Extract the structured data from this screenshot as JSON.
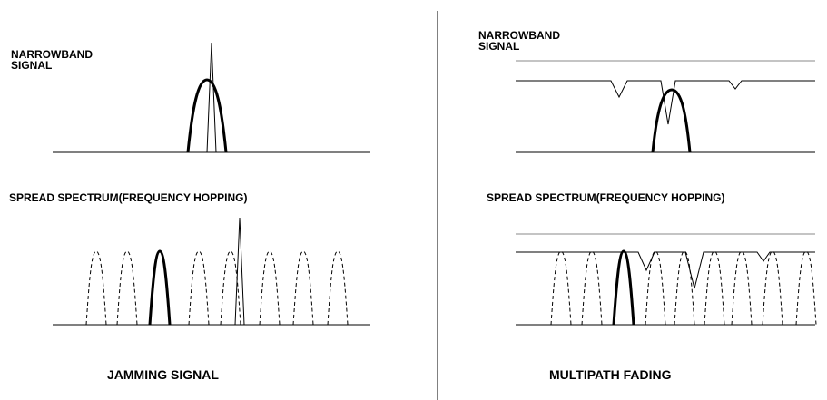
{
  "left_panel": {
    "narrowband_label": [
      "NARROWBAND",
      "SIGNAL"
    ],
    "spread_spectrum_label": "SPREAD SPECTRUM(FREQUENCY HOPPING)",
    "caption": "JAMMING SIGNAL"
  },
  "right_panel": {
    "narrowband_label": [
      "NARROWBAND",
      "SIGNAL"
    ],
    "spread_spectrum_label": "SPREAD SPECTRUM(FREQUENCY HOPPING)",
    "caption": "MULTIPATH FADING"
  },
  "colors": {
    "ink": "#000000",
    "background": "#ffffff"
  }
}
